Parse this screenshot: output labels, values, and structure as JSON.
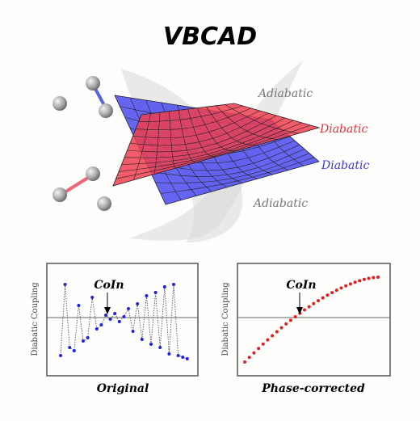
{
  "title": "VBCAD",
  "surface_labels": [
    "Adiabatic",
    "Diabatic",
    "Diabatic",
    "Adiabatic"
  ],
  "panels": [
    {
      "annotation": "CoIn",
      "y_label": "Diabatic Coupling",
      "caption": "Original"
    },
    {
      "annotation": "CoIn",
      "y_label": "Diabatic Coupling",
      "caption": "Phase-corrected"
    }
  ]
}
